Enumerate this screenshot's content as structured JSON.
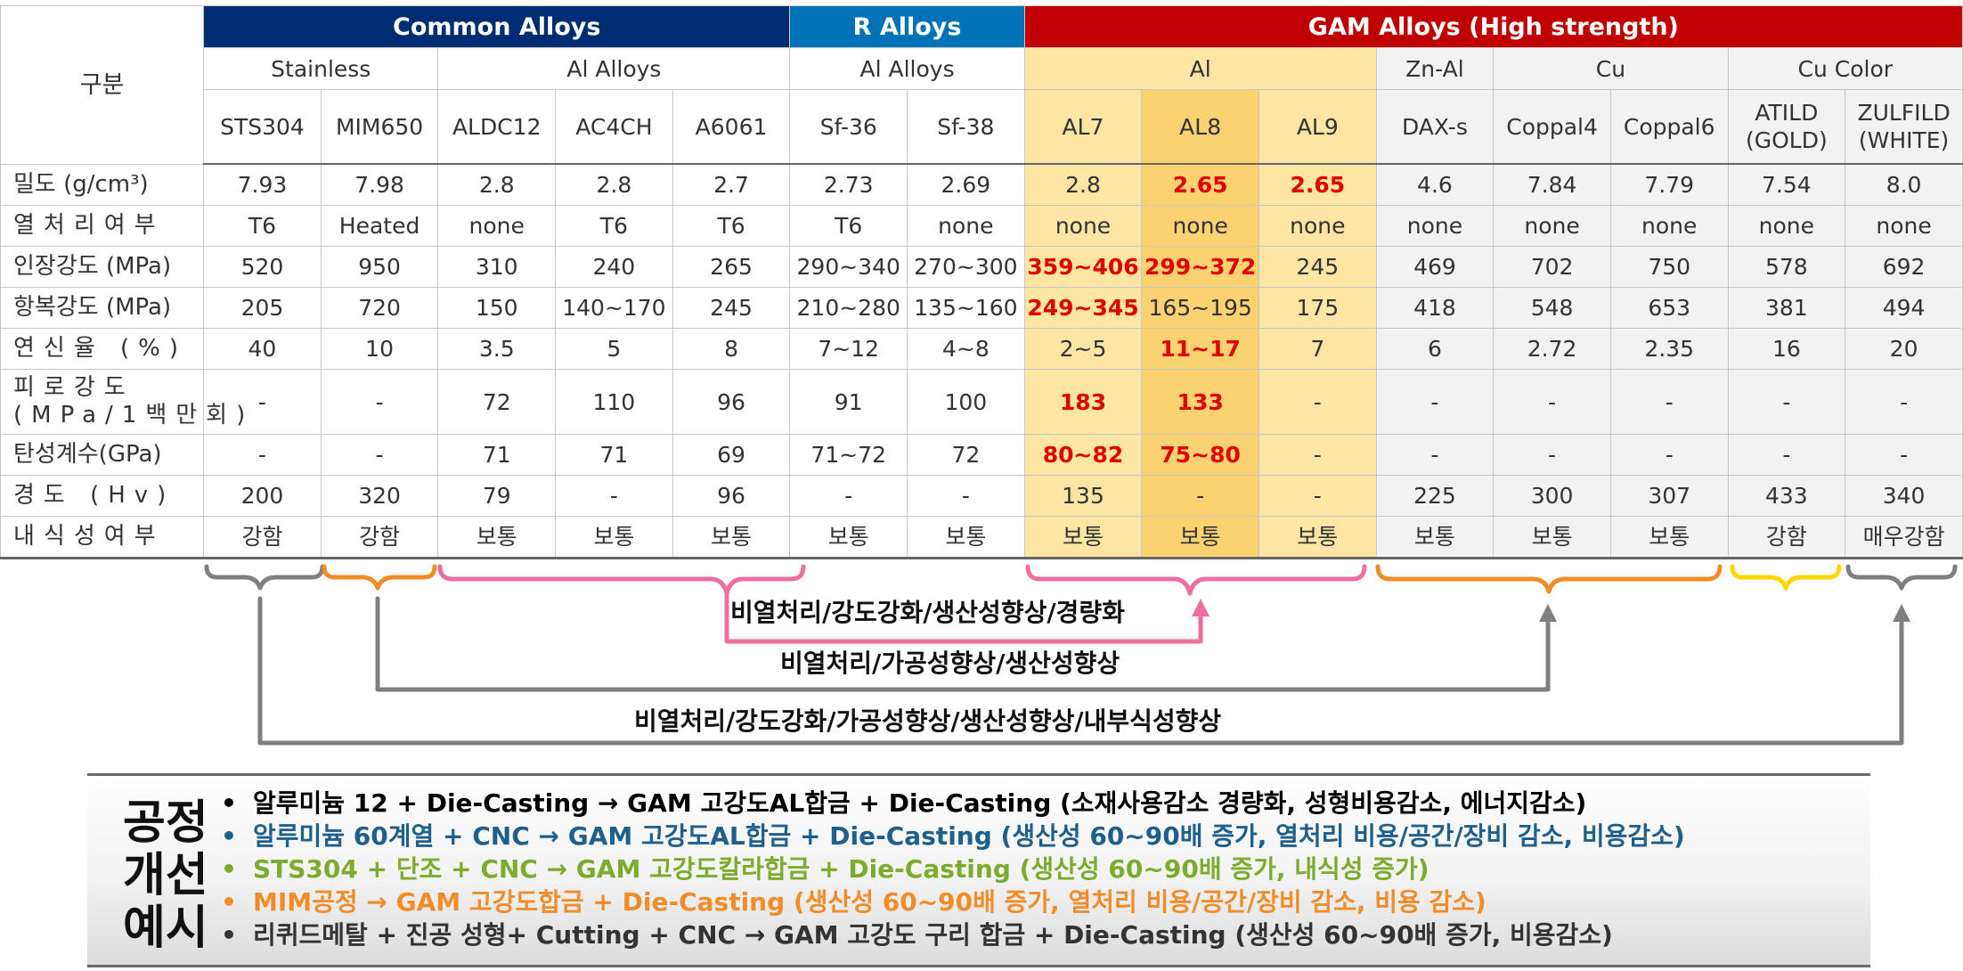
{
  "table": {
    "corner": "구분",
    "groups": [
      {
        "label": "Common Alloys",
        "color": "#002d72"
      },
      {
        "label": "R Alloys",
        "color": "#0072b8"
      },
      {
        "label": "GAM Alloys (High strength)",
        "color": "#c00000"
      }
    ],
    "subgroups": [
      "Stainless",
      "Al Alloys",
      "Al Alloys",
      "Al",
      "Zn-Al",
      "Cu",
      "Cu Color"
    ],
    "alloys": [
      "STS304",
      "MIM650",
      "ALDC12",
      "AC4CH",
      "A6061",
      "Sf-36",
      "Sf-38",
      "AL7",
      "AL8",
      "AL9",
      "DAX-s",
      "Coppal4",
      "Coppal6"
    ],
    "alloys_two_line": [
      {
        "line1": "ATILD",
        "line2": "(GOLD)"
      },
      {
        "line1": "ZULFILD",
        "line2": "(WHITE)"
      }
    ],
    "rows": [
      {
        "label": "밀도 (g/cm³)",
        "values": [
          "7.93",
          "7.98",
          "2.8",
          "2.8",
          "2.7",
          "2.73",
          "2.69",
          "2.8",
          "2.65",
          "2.65",
          "4.6",
          "7.84",
          "7.79",
          "7.54",
          "8.0"
        ]
      },
      {
        "label": "열처리여부",
        "values": [
          "T6",
          "Heated",
          "none",
          "T6",
          "T6",
          "T6",
          "none",
          "none",
          "none",
          "none",
          "none",
          "none",
          "none",
          "none",
          "none"
        ]
      },
      {
        "label": "인장강도 (MPa)",
        "values": [
          "520",
          "950",
          "310",
          "240",
          "265",
          "290~340",
          "270~300",
          "359~406",
          "299~372",
          "245",
          "469",
          "702",
          "750",
          "578",
          "692"
        ]
      },
      {
        "label": "항복강도 (MPa)",
        "values": [
          "205",
          "720",
          "150",
          "140~170",
          "245",
          "210~280",
          "135~160",
          "249~345",
          "165~195",
          "175",
          "418",
          "548",
          "653",
          "381",
          "494"
        ]
      },
      {
        "label": "연신율 (%)",
        "values": [
          "40",
          "10",
          "3.5",
          "5",
          "8",
          "7~12",
          "4~8",
          "2~5",
          "11~17",
          "7",
          "6",
          "2.72",
          "2.35",
          "16",
          "20"
        ]
      },
      {
        "label_line1": "피로강도",
        "label_line2": "(MPa/1백만회)",
        "values": [
          "-",
          "-",
          "72",
          "110",
          "96",
          "91",
          "100",
          "183",
          "133",
          "-",
          "-",
          "-",
          "-",
          "-",
          "-"
        ]
      },
      {
        "label": "탄성계수(GPa)",
        "values": [
          "-",
          "-",
          "71",
          "71",
          "69",
          "71~72",
          "72",
          "80~82",
          "75~80",
          "-",
          "-",
          "-",
          "-",
          "-",
          "-"
        ]
      },
      {
        "label": "경도 (Hv)",
        "values": [
          "200",
          "320",
          "79",
          "-",
          "96",
          "-",
          "-",
          "135",
          "-",
          "-",
          "225",
          "300",
          "307",
          "433",
          "340"
        ]
      },
      {
        "label": "내식성여부",
        "values": [
          "강함",
          "강함",
          "보통",
          "보통",
          "보통",
          "보통",
          "보통",
          "보통",
          "보통",
          "보통",
          "보통",
          "보통",
          "보통",
          "강함",
          "매우강함"
        ]
      }
    ],
    "highlight_color": "#e00000"
  },
  "arrows": {
    "label1": "비열처리/강도강화/생산성향상/경량화",
    "label2": "비열처리/가공성향상/생산성향상",
    "label3": "비열처리/강도강화/가공성향상/생산성향상/내부식성향상",
    "colors": {
      "grey": "#7f7f7f",
      "orange": "#f28c28",
      "pink": "#ec6fa0",
      "yellow": "#ffd700"
    }
  },
  "process": {
    "title": [
      "공정",
      "개선",
      "예시"
    ],
    "items": [
      {
        "text": "알루미늄 12 + Die-Casting → GAM 고강도AL합금 + Die-Casting (소재사용감소 경량화, 성형비용감소, 에너지감소)",
        "color": "#000000"
      },
      {
        "text": "알루미늄 60계열 + CNC → GAM 고강도AL합금 + Die-Casting (생산성 60~90배 증가, 열처리 비용/공간/장비 감소, 비용감소)",
        "color": "#1f5f8b"
      },
      {
        "text": "STS304 + 단조 + CNC → GAM 고강도칼라합금 + Die-Casting (생산성 60~90배 증가, 내식성 증가)",
        "color": "#7cab2e"
      },
      {
        "text": "MIM공정 → GAM 고강도합금 + Die-Casting (생산성 60~90배 증가, 열처리 비용/공간/장비 감소, 비용 감소)",
        "color": "#f28c28"
      },
      {
        "text": "리퀴드메탈 + 진공 성형+ Cutting + CNC → GAM 고강도 구리 합금 + Die-Casting (생산성 60~90배 증가, 비용감소)",
        "color": "#333333"
      }
    ]
  }
}
